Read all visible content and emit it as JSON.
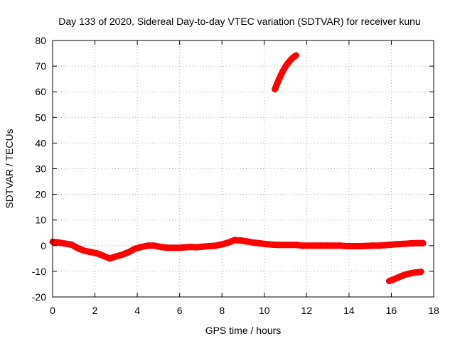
{
  "chart_data": {
    "type": "scatter",
    "title": "Day 133 of 2020, Sidereal Day-to-day VTEC variation (SDTVAR) for receiver kunu",
    "xlabel": "GPS time / hours",
    "ylabel": "SDTVAR / TECUs",
    "xlim": [
      0,
      18
    ],
    "ylim": [
      -20,
      80
    ],
    "xticks": [
      "0",
      "2",
      "4",
      "6",
      "8",
      "10",
      "12",
      "14",
      "16",
      "18"
    ],
    "yticks": [
      "-20",
      "-10",
      "0",
      "10",
      "20",
      "30",
      "40",
      "50",
      "60",
      "70",
      "80"
    ],
    "grid": true,
    "legend": "none",
    "series": [
      {
        "name": "main",
        "color": "#ff0000",
        "marker": "plus",
        "x": [
          0.0,
          0.3,
          0.6,
          0.9,
          1.2,
          1.5,
          1.8,
          2.1,
          2.4,
          2.7,
          3.0,
          3.3,
          3.6,
          3.9,
          4.2,
          4.5,
          4.8,
          5.1,
          5.4,
          5.7,
          6.0,
          6.2,
          6.5,
          6.8,
          7.1,
          7.4,
          7.7,
          8.0,
          8.3,
          8.6,
          8.9,
          9.2,
          9.5,
          9.8,
          10.1,
          10.4,
          10.7,
          11.0,
          11.3,
          11.5,
          11.8,
          12.1,
          12.4,
          12.7,
          13.0,
          13.3,
          13.6,
          13.9,
          14.2,
          14.5,
          14.8,
          15.1,
          15.4,
          15.7,
          16.0,
          16.3,
          16.6,
          16.9,
          17.2,
          17.5
        ],
        "y": [
          1.5,
          1.2,
          0.8,
          0.4,
          -1.0,
          -2.0,
          -2.5,
          -3.0,
          -4.0,
          -5.0,
          -4.2,
          -3.5,
          -2.5,
          -1.2,
          -0.5,
          0.0,
          0.0,
          -0.5,
          -0.8,
          -0.8,
          -0.8,
          -0.7,
          -0.5,
          -0.6,
          -0.4,
          -0.2,
          0.0,
          0.5,
          1.2,
          2.2,
          2.0,
          1.6,
          1.2,
          0.9,
          0.6,
          0.4,
          0.3,
          0.3,
          0.3,
          0.3,
          0.0,
          0.0,
          0.0,
          0.0,
          0.0,
          0.0,
          0.0,
          -0.2,
          -0.2,
          -0.2,
          -0.1,
          0.0,
          0.0,
          0.2,
          0.4,
          0.6,
          0.7,
          0.9,
          1.0,
          1.0
        ]
      },
      {
        "name": "upper-arc",
        "color": "#ff0000",
        "marker": "plus",
        "x": [
          10.5,
          10.6,
          10.7,
          10.8,
          10.9,
          11.0,
          11.1,
          11.2,
          11.3,
          11.4,
          11.5
        ],
        "y": [
          61.0,
          63.0,
          65.0,
          66.8,
          68.4,
          69.8,
          71.0,
          72.0,
          72.9,
          73.6,
          74.2
        ]
      },
      {
        "name": "lower-arc",
        "color": "#ff0000",
        "marker": "plus",
        "x": [
          15.9,
          16.1,
          16.3,
          16.5,
          16.7,
          16.9,
          17.1,
          17.3,
          17.4
        ],
        "y": [
          -13.8,
          -13.2,
          -12.5,
          -11.8,
          -11.2,
          -10.8,
          -10.5,
          -10.3,
          -10.2
        ]
      }
    ]
  }
}
